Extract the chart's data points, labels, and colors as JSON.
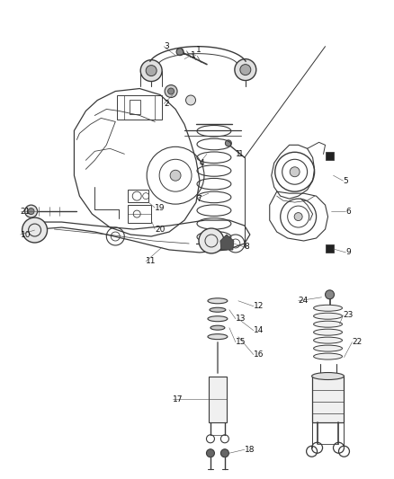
{
  "bg_color": "#ffffff",
  "line_color": "#3a3a3a",
  "label_color": "#111111",
  "fig_width": 4.38,
  "fig_height": 5.33,
  "dpi": 100,
  "labels": {
    "1_bolt": [
      2.12,
      4.72,
      "1"
    ],
    "1_ptr": [
      2.62,
      3.62,
      "1"
    ],
    "2": [
      1.82,
      4.18,
      "2"
    ],
    "3": [
      1.82,
      4.82,
      "3"
    ],
    "4": [
      2.22,
      3.52,
      "4"
    ],
    "5": [
      3.82,
      3.32,
      "5"
    ],
    "6": [
      3.85,
      2.98,
      "6"
    ],
    "7": [
      2.18,
      3.12,
      "7"
    ],
    "8": [
      2.72,
      2.58,
      "8"
    ],
    "9": [
      3.85,
      2.52,
      "9"
    ],
    "10": [
      0.22,
      2.72,
      "10"
    ],
    "11": [
      1.62,
      2.42,
      "11"
    ],
    "12": [
      2.82,
      1.92,
      "12"
    ],
    "13": [
      2.62,
      1.78,
      "13"
    ],
    "14": [
      2.82,
      1.65,
      "14"
    ],
    "15": [
      2.62,
      1.52,
      "15"
    ],
    "16": [
      2.82,
      1.38,
      "16"
    ],
    "17": [
      1.92,
      0.88,
      "17"
    ],
    "18": [
      2.72,
      0.32,
      "18"
    ],
    "19": [
      1.72,
      3.02,
      "19"
    ],
    "20": [
      1.72,
      2.78,
      "20"
    ],
    "21": [
      0.22,
      2.98,
      "21"
    ],
    "22": [
      3.92,
      1.52,
      "22"
    ],
    "23": [
      3.82,
      1.82,
      "23"
    ],
    "24": [
      3.32,
      1.98,
      "24"
    ]
  }
}
